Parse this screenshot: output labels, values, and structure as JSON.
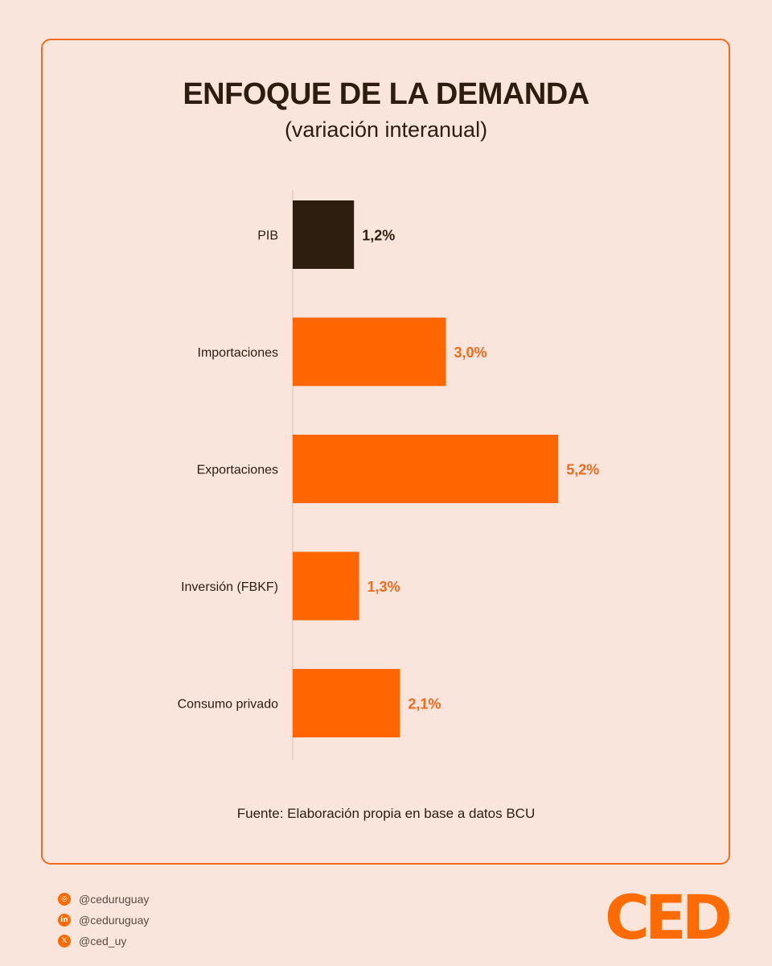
{
  "chart_data": {
    "type": "bar",
    "orientation": "horizontal",
    "title": "ENFOQUE DE LA DEMANDA",
    "subtitle": "(variación interanual)",
    "categories": [
      "PIB",
      "Importaciones",
      "Exportaciones",
      "Inversión (FBKF)",
      "Consumo privado"
    ],
    "values": [
      1.2,
      3.0,
      5.2,
      1.3,
      2.1
    ],
    "value_labels": [
      "1,2%",
      "3,0%",
      "5,2%",
      "1,3%",
      "2,1%"
    ],
    "colors": [
      "#2d1e10",
      "#ff6600",
      "#ff6600",
      "#ff6600",
      "#ff6600"
    ],
    "label_colors": [
      "#2d1e10",
      "#f26a1b",
      "#f26a1b",
      "#f26a1b",
      "#f26a1b"
    ],
    "xlim": [
      0,
      6
    ],
    "grid": false,
    "source": "Fuente: Elaboración propia en base a datos BCU"
  },
  "socials": [
    {
      "icon": "instagram-icon",
      "glyph": "◎",
      "handle": "@ceduruguay"
    },
    {
      "icon": "linkedin-icon",
      "glyph": "in",
      "handle": "@ceduruguay"
    },
    {
      "icon": "x-icon",
      "glyph": "𝕏",
      "handle": "@ced_uy"
    }
  ],
  "logo": {
    "text": "CED",
    "color": "#ff6b00"
  }
}
